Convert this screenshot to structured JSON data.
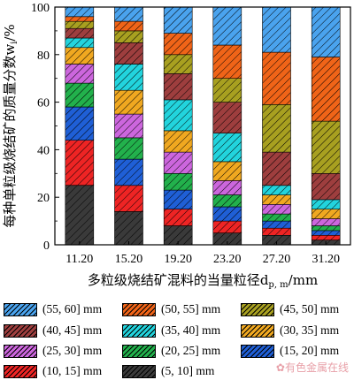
{
  "chart_data": {
    "type": "bar",
    "stacked": true,
    "title": "",
    "xlabel": "多粒级烧结矿混料的当量粒径d",
    "xlabel_sub": "p, m",
    "xlabel_unit": "/mm",
    "ylabel": "每种单粒级烧结矿的质量分数w",
    "ylabel_sub": "i",
    "ylabel_unit": "/%",
    "ylim": [
      0,
      100
    ],
    "yticks": [
      0,
      20,
      40,
      60,
      80,
      100
    ],
    "grid": false,
    "legend_position": "bottom",
    "categories": [
      "11.20",
      "15.20",
      "19.20",
      "23.20",
      "27.20",
      "31.20"
    ],
    "series": [
      {
        "name": "(5, 10] mm",
        "color": "#3a3a3a",
        "values": [
          25,
          14,
          8,
          5,
          4,
          2
        ]
      },
      {
        "name": "(10, 15] mm",
        "color": "#ee2424",
        "values": [
          19,
          11,
          7,
          5,
          3,
          2
        ]
      },
      {
        "name": "(15, 20] mm",
        "color": "#1f5fd6",
        "values": [
          14,
          11,
          8,
          6,
          3,
          2
        ]
      },
      {
        "name": "(20, 25] mm",
        "color": "#22b14c",
        "values": [
          10,
          9,
          7,
          5,
          3,
          2
        ]
      },
      {
        "name": "(25, 30] mm",
        "color": "#cc66dd",
        "values": [
          8,
          10,
          9,
          6,
          4,
          3
        ]
      },
      {
        "name": "(30, 35] mm",
        "color": "#f0a820",
        "values": [
          7,
          10,
          9,
          8,
          4,
          4
        ]
      },
      {
        "name": "(35, 40] mm",
        "color": "#22d4dd",
        "values": [
          4,
          11,
          13,
          12,
          4,
          4
        ]
      },
      {
        "name": "(40, 45] mm",
        "color": "#9e3e3e",
        "values": [
          4,
          9,
          11,
          13,
          14,
          11
        ]
      },
      {
        "name": "(45, 50] mm",
        "color": "#a8a020",
        "values": [
          3,
          5,
          8,
          10,
          20,
          22
        ]
      },
      {
        "name": "(50, 55] mm",
        "color": "#f06418",
        "values": [
          2,
          4,
          9,
          14,
          22,
          27
        ]
      },
      {
        "name": "(55, 60] mm",
        "color": "#4aa3ee",
        "values": [
          4,
          6,
          11,
          16,
          19,
          21
        ]
      }
    ]
  },
  "legend": {
    "order": [
      10,
      9,
      8,
      7,
      6,
      5,
      4,
      3,
      2,
      1,
      0
    ],
    "labels": [
      "(55, 60] mm",
      "(50, 55] mm",
      "(45, 50] mm",
      "(40, 45] mm",
      "(35, 40] mm",
      "(30, 35] mm",
      "(25, 30] mm",
      "(20, 25] mm",
      "(15, 20] mm",
      "(10, 15] mm",
      "(5, 10] mm"
    ]
  },
  "watermark": "有色金属在线"
}
